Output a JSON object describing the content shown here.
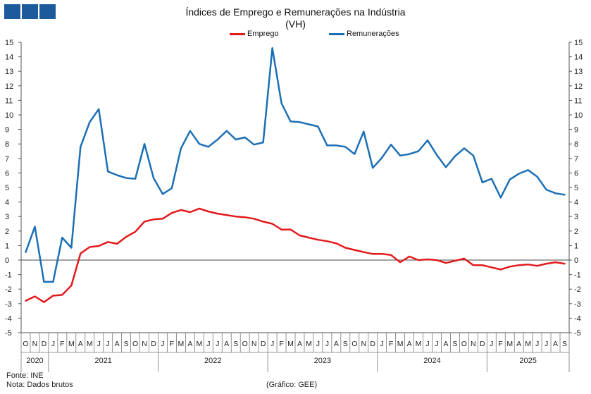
{
  "logo": {
    "icon": "ine-logo-squares",
    "color": "#1c5a9c"
  },
  "chart_data": {
    "type": "line",
    "title": "Índices de Emprego e Remunerações na Indústria",
    "subtitle": "(VH)",
    "legend_position": "top-center",
    "grid": false,
    "ylim": [
      -5,
      15
    ],
    "y_ticks": [
      "15",
      "14",
      "13",
      "12",
      "11",
      "10",
      "9",
      "8",
      "7",
      "6",
      "5",
      "4",
      "3",
      "2",
      "1",
      "0",
      "-1",
      "-2",
      "-3",
      "-4",
      "-5"
    ],
    "month_labels": [
      "O",
      "N",
      "D",
      "J",
      "F",
      "M",
      "A",
      "M",
      "J",
      "J",
      "A",
      "S",
      "O",
      "N",
      "D",
      "J",
      "F",
      "M",
      "A",
      "M",
      "J",
      "J",
      "A",
      "S",
      "O",
      "N",
      "D",
      "J",
      "F",
      "M",
      "A",
      "M",
      "J",
      "J",
      "A",
      "S",
      "O",
      "N",
      "D",
      "J",
      "F",
      "M",
      "A",
      "M",
      "J",
      "J",
      "A",
      "S",
      "O",
      "N",
      "D",
      "J",
      "F",
      "M",
      "A",
      "M",
      "J",
      "J",
      "A",
      "S"
    ],
    "year_labels": [
      {
        "label": "2020",
        "start": 0,
        "end": 2
      },
      {
        "label": "2021",
        "start": 3,
        "end": 14
      },
      {
        "label": "2022",
        "start": 15,
        "end": 26
      },
      {
        "label": "2023",
        "start": 27,
        "end": 38
      },
      {
        "label": "2024",
        "start": 39,
        "end": 50
      },
      {
        "label": "2025",
        "start": 51,
        "end": 59
      }
    ],
    "series": [
      {
        "name": "Emprego",
        "color": "#e31a1c",
        "values": [
          -2.8,
          -2.5,
          -2.9,
          -2.45,
          -2.4,
          -1.75,
          0.45,
          0.9,
          0.97,
          1.25,
          1.12,
          1.6,
          1.95,
          2.65,
          2.8,
          2.85,
          3.25,
          3.45,
          3.3,
          3.55,
          3.35,
          3.2,
          3.1,
          3.0,
          2.95,
          2.85,
          2.65,
          2.5,
          2.1,
          2.1,
          1.7,
          1.55,
          1.4,
          1.3,
          1.15,
          0.85,
          0.7,
          0.55,
          0.42,
          0.42,
          0.35,
          -0.15,
          0.25,
          0.0,
          0.05,
          0.0,
          -0.2,
          -0.05,
          0.1,
          -0.35,
          -0.35,
          -0.5,
          -0.65,
          -0.45,
          -0.35,
          -0.3,
          -0.4,
          -0.25,
          -0.15,
          -0.25
        ]
      },
      {
        "name": "Remunerações",
        "color": "#1c6fb5",
        "values": [
          0.55,
          2.3,
          -1.5,
          -1.5,
          1.55,
          0.85,
          7.8,
          9.5,
          10.4,
          6.1,
          5.85,
          5.65,
          5.6,
          8.0,
          5.65,
          4.55,
          4.95,
          7.7,
          8.9,
          8.0,
          7.8,
          8.3,
          8.9,
          8.3,
          8.45,
          7.95,
          8.1,
          14.6,
          10.8,
          9.55,
          9.5,
          9.35,
          9.2,
          7.9,
          7.9,
          7.8,
          7.3,
          8.85,
          6.35,
          7.05,
          7.95,
          7.2,
          7.3,
          7.5,
          8.25,
          7.25,
          6.4,
          7.15,
          7.7,
          7.2,
          5.35,
          5.6,
          4.3,
          5.55,
          5.95,
          6.2,
          5.75,
          4.85,
          4.6,
          4.5
        ]
      }
    ]
  },
  "footer": {
    "source": "Fonte: INE",
    "note": "Nota: Dados brutos",
    "credit": "(Gráfico: GEE)"
  }
}
